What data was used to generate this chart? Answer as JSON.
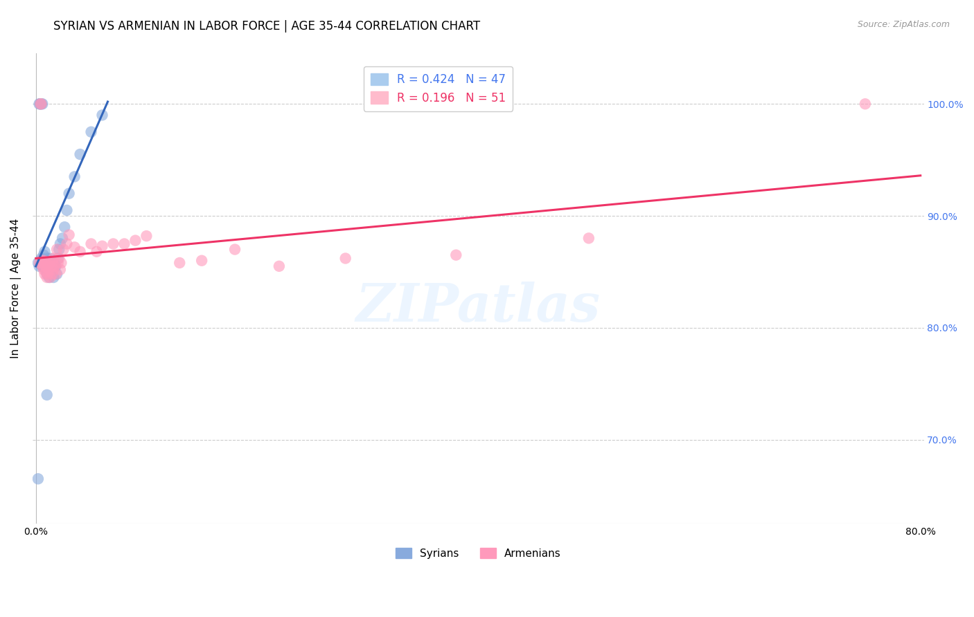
{
  "title": "SYRIAN VS ARMENIAN IN LABOR FORCE | AGE 35-44 CORRELATION CHART",
  "source": "Source: ZipAtlas.com",
  "ylabel": "In Labor Force | Age 35-44",
  "xlim": [
    -0.003,
    0.803
  ],
  "ylim": [
    0.625,
    1.045
  ],
  "yticks": [
    0.7,
    0.8,
    0.9,
    1.0
  ],
  "ytick_labels": [
    "70.0%",
    "80.0%",
    "90.0%",
    "100.0%"
  ],
  "xticks": [
    0.0,
    0.1,
    0.2,
    0.3,
    0.4,
    0.5,
    0.6,
    0.7,
    0.8
  ],
  "xtick_labels": [
    "0.0%",
    "",
    "",
    "",
    "",
    "",
    "",
    "",
    "80.0%"
  ],
  "syrians_R": "0.424",
  "syrians_N": "47",
  "armenians_R": "0.196",
  "armenians_N": "51",
  "blue_scatter_color": "#88AADD",
  "pink_scatter_color": "#FF99BB",
  "blue_line_color": "#3366BB",
  "pink_line_color": "#EE3366",
  "syrians_x": [
    0.002,
    0.003,
    0.003,
    0.004,
    0.004,
    0.004,
    0.005,
    0.005,
    0.005,
    0.006,
    0.006,
    0.006,
    0.007,
    0.007,
    0.008,
    0.008,
    0.009,
    0.009,
    0.01,
    0.01,
    0.01,
    0.011,
    0.011,
    0.012,
    0.012,
    0.013,
    0.013,
    0.014,
    0.015,
    0.016,
    0.016,
    0.017,
    0.018,
    0.019,
    0.02,
    0.021,
    0.022,
    0.024,
    0.026,
    0.028,
    0.03,
    0.035,
    0.04,
    0.05,
    0.06,
    0.01,
    0.002
  ],
  "syrians_y": [
    0.858,
    0.855,
    1.0,
    1.0,
    1.0,
    0.86,
    0.856,
    0.862,
    1.0,
    0.855,
    0.86,
    1.0,
    0.858,
    0.865,
    0.855,
    0.868,
    0.852,
    0.857,
    0.848,
    0.855,
    0.862,
    0.85,
    0.858,
    0.845,
    0.855,
    0.848,
    0.862,
    0.855,
    0.858,
    0.845,
    0.858,
    0.855,
    0.855,
    0.848,
    0.862,
    0.87,
    0.875,
    0.88,
    0.89,
    0.905,
    0.92,
    0.935,
    0.955,
    0.975,
    0.99,
    0.74,
    0.665
  ],
  "armenians_x": [
    0.003,
    0.004,
    0.005,
    0.005,
    0.006,
    0.006,
    0.007,
    0.007,
    0.008,
    0.008,
    0.009,
    0.009,
    0.01,
    0.01,
    0.011,
    0.011,
    0.012,
    0.013,
    0.013,
    0.014,
    0.015,
    0.015,
    0.016,
    0.016,
    0.017,
    0.018,
    0.019,
    0.02,
    0.021,
    0.022,
    0.023,
    0.025,
    0.028,
    0.03,
    0.035,
    0.04,
    0.05,
    0.055,
    0.06,
    0.07,
    0.08,
    0.09,
    0.1,
    0.13,
    0.15,
    0.18,
    0.22,
    0.28,
    0.38,
    0.5,
    0.75
  ],
  "armenians_y": [
    0.858,
    1.0,
    1.0,
    0.86,
    0.858,
    0.855,
    0.852,
    0.86,
    0.848,
    0.855,
    0.85,
    0.858,
    0.845,
    0.855,
    0.848,
    0.858,
    0.852,
    0.845,
    0.858,
    0.855,
    0.848,
    0.858,
    0.852,
    0.862,
    0.855,
    0.848,
    0.87,
    0.858,
    0.862,
    0.852,
    0.858,
    0.87,
    0.875,
    0.883,
    0.872,
    0.868,
    0.875,
    0.868,
    0.873,
    0.875,
    0.875,
    0.878,
    0.882,
    0.858,
    0.86,
    0.87,
    0.855,
    0.862,
    0.865,
    0.88,
    1.0
  ],
  "background_color": "#FFFFFF",
  "grid_color": "#CCCCCC",
  "title_fontsize": 12,
  "label_fontsize": 11,
  "tick_fontsize": 10,
  "right_tick_color": "#4477EE",
  "watermark": "ZIPatlas"
}
